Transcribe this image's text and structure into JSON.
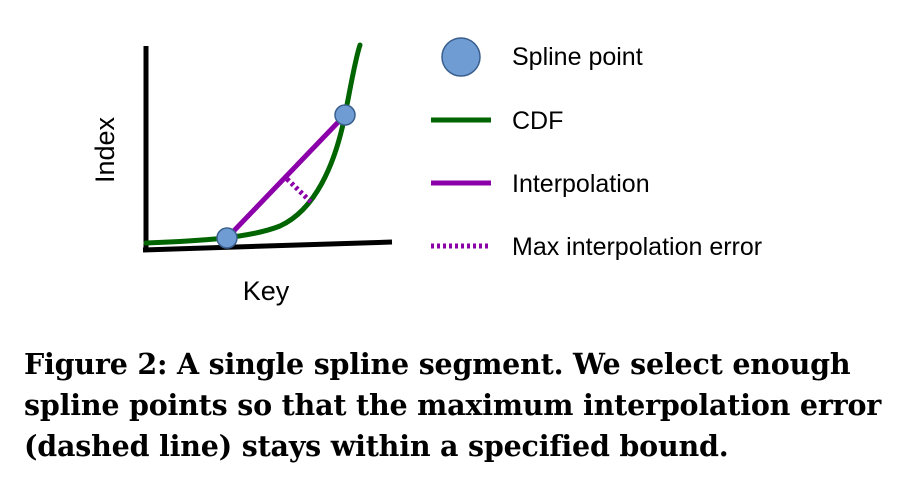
{
  "diagram": {
    "x_axis_label": "Key",
    "y_axis_label": "Index"
  },
  "legend": {
    "items": [
      {
        "label": "Spline point",
        "symbol": "circle"
      },
      {
        "label": "CDF",
        "symbol": "solid-line"
      },
      {
        "label": "Interpolation",
        "symbol": "solid-line"
      },
      {
        "label": "Max interpolation error",
        "symbol": "dotted-line"
      }
    ]
  },
  "colors": {
    "cdf": "#006400",
    "interpolation": "#8B00A8",
    "spline_point_fill": "#6F9DD3",
    "spline_point_stroke": "#3A5F8F",
    "axis": "#000000"
  },
  "caption": "Figure 2: A single spline segment. We select enough spline points so that the maximum interpolation error (dashed line) stays within a specified bound."
}
